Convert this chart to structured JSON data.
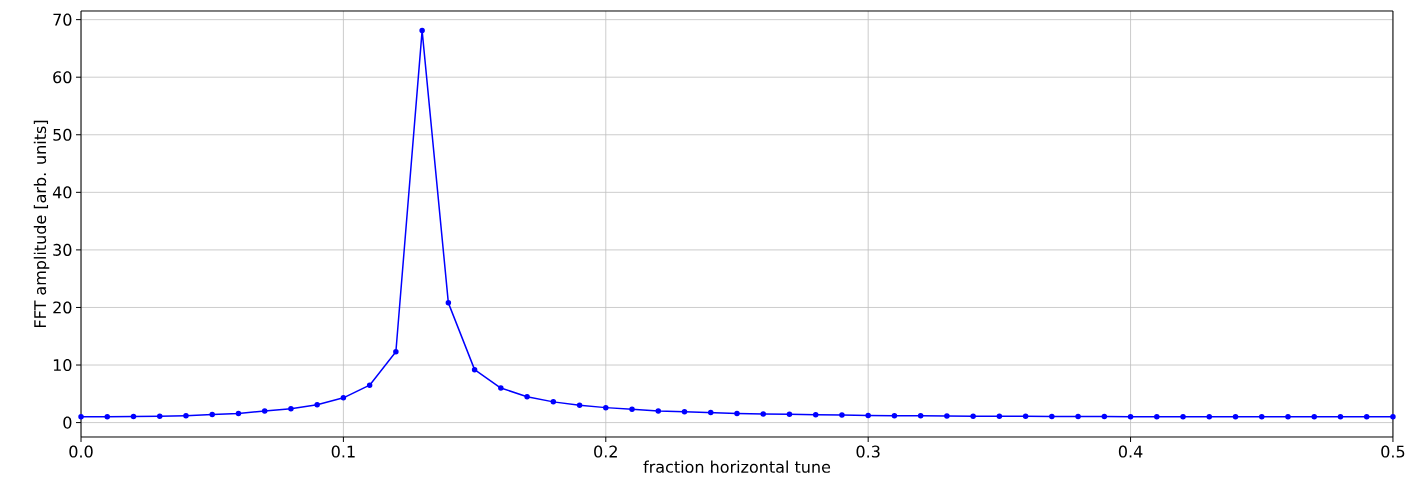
{
  "chart_data": {
    "type": "line",
    "xlabel": "fraction horizontal tune",
    "ylabel": "FFT amplitude [arb. units]",
    "x": [
      0,
      0.01,
      0.02,
      0.03,
      0.04,
      0.05,
      0.06,
      0.07,
      0.08,
      0.09,
      0.1,
      0.11,
      0.12,
      0.13,
      0.14,
      0.15,
      0.16,
      0.17,
      0.18,
      0.19,
      0.2,
      0.21,
      0.22,
      0.23,
      0.24,
      0.25,
      0.26,
      0.27,
      0.28,
      0.29,
      0.3,
      0.31,
      0.32,
      0.33,
      0.34,
      0.35,
      0.36,
      0.37,
      0.38,
      0.39,
      0.4,
      0.41,
      0.42,
      0.43,
      0.44,
      0.45,
      0.46,
      0.47,
      0.48,
      0.49,
      0.5
    ],
    "series": [
      {
        "color": "#0000ff",
        "values": [
          1.0,
          1.0,
          1.05,
          1.1,
          1.2,
          1.4,
          1.6,
          2.0,
          2.4,
          3.1,
          4.3,
          6.5,
          12.3,
          68.1,
          20.8,
          9.2,
          6.0,
          4.5,
          3.6,
          3.0,
          2.6,
          2.3,
          2.0,
          1.9,
          1.75,
          1.6,
          1.5,
          1.45,
          1.35,
          1.3,
          1.25,
          1.2,
          1.2,
          1.15,
          1.1,
          1.1,
          1.1,
          1.05,
          1.05,
          1.05,
          1.0,
          1.0,
          1.0,
          1.0,
          1.0,
          1.0,
          1.0,
          1.0,
          1.0,
          1.0,
          1.0
        ]
      }
    ],
    "xlim": [
      0,
      0.5
    ],
    "ylim": [
      -2.5,
      71.5
    ],
    "xticks": [
      {
        "value": 0,
        "label": "0.0"
      },
      0.1,
      0.2,
      0.3,
      0.4,
      0.5
    ],
    "yticks": [
      0,
      10,
      20,
      30,
      40,
      50,
      60,
      70
    ],
    "grid": true,
    "marker": "circle",
    "line_style": "solid"
  }
}
